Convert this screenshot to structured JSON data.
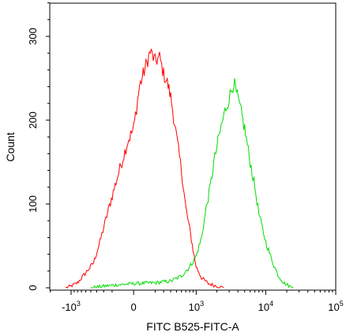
{
  "chart_data": {
    "type": "line",
    "title": "",
    "xlabel": "FITC B525-FITC-A",
    "ylabel": "Count",
    "x_scale": "biexponential",
    "xlim": [
      -3000,
      100000
    ],
    "ylim": [
      0,
      345
    ],
    "grid": false,
    "x_ticks": [
      {
        "value": -1000,
        "base": "-10",
        "exp": "3"
      },
      {
        "value": 0,
        "base": "0",
        "exp": ""
      },
      {
        "value": 1000,
        "base": "10",
        "exp": "3"
      },
      {
        "value": 10000,
        "base": "10",
        "exp": "4"
      },
      {
        "value": 100000,
        "base": "10",
        "exp": "5"
      }
    ],
    "y_ticks": [
      {
        "value": 0,
        "label": "0"
      },
      {
        "value": 100,
        "label": "100"
      },
      {
        "value": 200,
        "label": "200"
      },
      {
        "value": 300,
        "label": "300"
      }
    ],
    "series": [
      {
        "color": "#ff0000",
        "points": [
          [
            -1200,
            0
          ],
          [
            -1000,
            2
          ],
          [
            -800,
            6
          ],
          [
            -600,
            18
          ],
          [
            -450,
            30
          ],
          [
            -350,
            55
          ],
          [
            -250,
            90
          ],
          [
            -150,
            130
          ],
          [
            -50,
            175
          ],
          [
            0,
            190
          ],
          [
            50,
            240
          ],
          [
            100,
            262
          ],
          [
            150,
            282
          ],
          [
            200,
            270
          ],
          [
            250,
            275
          ],
          [
            300,
            255
          ],
          [
            350,
            245
          ],
          [
            400,
            228
          ],
          [
            450,
            205
          ],
          [
            500,
            180
          ],
          [
            600,
            140
          ],
          [
            700,
            95
          ],
          [
            800,
            70
          ],
          [
            900,
            45
          ],
          [
            1000,
            25
          ],
          [
            1200,
            12
          ],
          [
            1500,
            5
          ],
          [
            2000,
            2
          ],
          [
            2500,
            0
          ]
        ]
      },
      {
        "color": "#00dd00",
        "points": [
          [
            -500,
            0
          ],
          [
            -200,
            3
          ],
          [
            0,
            5
          ],
          [
            200,
            6
          ],
          [
            400,
            8
          ],
          [
            600,
            14
          ],
          [
            800,
            25
          ],
          [
            1000,
            38
          ],
          [
            1200,
            60
          ],
          [
            1400,
            95
          ],
          [
            1600,
            120
          ],
          [
            1800,
            148
          ],
          [
            2000,
            168
          ],
          [
            2300,
            192
          ],
          [
            2700,
            215
          ],
          [
            3100,
            230
          ],
          [
            3500,
            246
          ],
          [
            3800,
            232
          ],
          [
            4200,
            218
          ],
          [
            5000,
            190
          ],
          [
            6000,
            150
          ],
          [
            7000,
            120
          ],
          [
            8000,
            88
          ],
          [
            9000,
            70
          ],
          [
            10000,
            55
          ],
          [
            12000,
            35
          ],
          [
            15000,
            15
          ],
          [
            18000,
            6
          ],
          [
            22000,
            2
          ],
          [
            25000,
            0
          ]
        ]
      }
    ]
  }
}
